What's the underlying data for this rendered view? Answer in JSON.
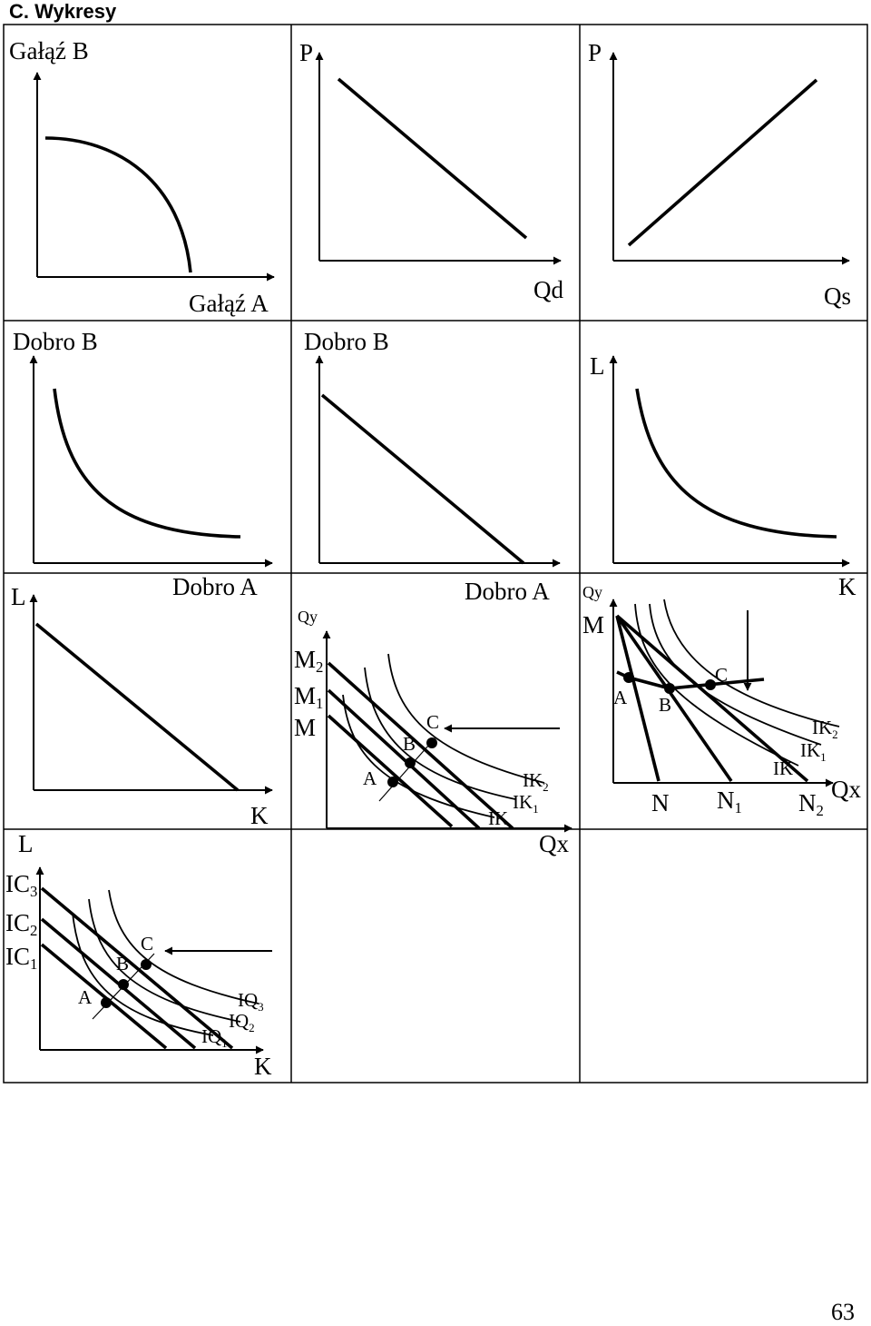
{
  "header": {
    "title": "C. Wykresy"
  },
  "page_number": "63",
  "panels": {
    "ppf": {
      "y_label": "Gałąź B",
      "x_label": "Gałąź A"
    },
    "demand": {
      "y_label": "P",
      "x_label": "Qd"
    },
    "supply": {
      "y_label": "P",
      "x_label": "Qs"
    },
    "indiff": {
      "y_label": "Dobro B",
      "x_label": "Dobro A"
    },
    "budget": {
      "y_label": "Dobro B",
      "x_label": "Dobro A"
    },
    "isoquant": {
      "y_label": "L",
      "x_label": "K"
    },
    "isocost": {
      "y_label": "L",
      "x_label": "K"
    },
    "income_path": {
      "y_label": "Qy",
      "x_label": "Qx",
      "budget_labels": [
        "M2",
        "M1",
        "M"
      ],
      "points": [
        "A",
        "B",
        "C"
      ],
      "curve_labels": [
        "IK2",
        "IK1",
        "IK"
      ]
    },
    "price_path": {
      "y_label": "Qy",
      "x_label": "Qx",
      "budget_label": "M",
      "points": [
        "A",
        "B",
        "C"
      ],
      "curve_labels": [
        "IK2",
        "IK1",
        "IK"
      ],
      "x_marks": [
        "N",
        "N1",
        "N2"
      ]
    },
    "expansion_path": {
      "y_label": "L",
      "x_label": "K",
      "isocost_labels": [
        "IC3",
        "IC2",
        "IC1"
      ],
      "points": [
        "A",
        "B",
        "C"
      ],
      "isoquant_labels": [
        "IQ3",
        "IQ2",
        "IQ1"
      ]
    }
  }
}
